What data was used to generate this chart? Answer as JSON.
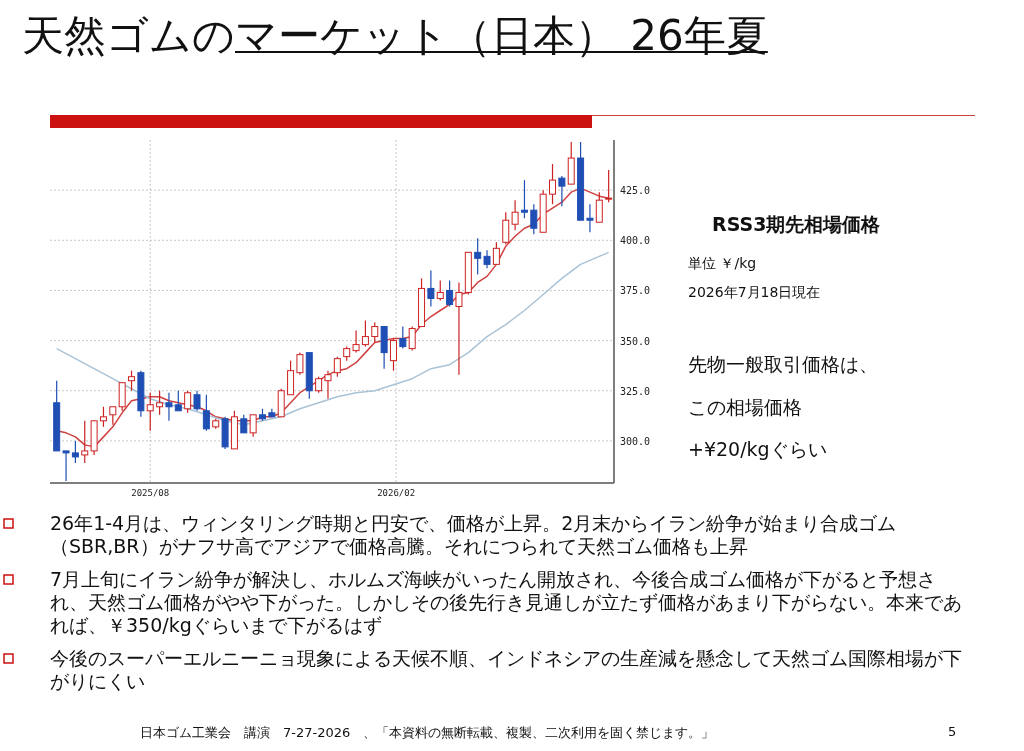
{
  "chart_data": {
    "type": "candlestick",
    "title": "天然ゴムのマーケット（日本） 26年夏",
    "annotations": [
      "RSS3期先相場価格",
      "単位 ￥/kg",
      "2026年7月18日現在",
      "先物一般取引価格は、",
      "この相場価格",
      "+¥20/kgぐらい",
      "26年1-4月は、ウィンタリング時期と円安で、価格が上昇。2月末からイラン紛争が始まり合成ゴム（SBR,BR）がナフサ高でアジアで価格高騰。それにつられて天然ゴム価格も上昇",
      "7月上旬にイラン紛争が解決し、ホルムズ海峡がいったん開放され、今後合成ゴム価格が下がると予想され、天然ゴム価格がやや下がった。しかしその後先行き見通しが立たず価格があまり下がらない。本来であれば、￥350/kgぐらいまで下がるはず",
      "今後のスーパーエルニーニョ現象による天候不順、インドネシアの生産減を懸念して天然ゴム国際相場が下がりにくい",
      "日本ゴム工業会　講演　7-27-2026　、「本資料の無断転載、複製、二次利用を固く禁じます。」",
      "5"
    ],
    "x": [
      "2025-05-23",
      "2025-05-30",
      "2025-06-06",
      "2025-06-13",
      "2025-06-20",
      "2025-06-27",
      "2025-07-04",
      "2025-07-11",
      "2025-07-18",
      "2025-07-25",
      "2025-08-01",
      "2025-08-08",
      "2025-08-15",
      "2025-08-22",
      "2025-08-29",
      "2025-09-05",
      "2025-09-12",
      "2025-09-19",
      "2025-09-26",
      "2025-10-03",
      "2025-10-10",
      "2025-10-17",
      "2025-10-24",
      "2025-10-31",
      "2025-11-07",
      "2025-11-14",
      "2025-11-21",
      "2025-11-28",
      "2025-12-05",
      "2025-12-12",
      "2025-12-19",
      "2025-12-26",
      "2026-01-02",
      "2026-01-09",
      "2026-01-16",
      "2026-01-23",
      "2026-01-30",
      "2026-02-06",
      "2026-02-13",
      "2026-02-20",
      "2026-02-27",
      "2026-03-06",
      "2026-03-13",
      "2026-03-20",
      "2026-03-27",
      "2026-04-03",
      "2026-04-10",
      "2026-04-17",
      "2026-04-24",
      "2026-05-01",
      "2026-05-08",
      "2026-05-15",
      "2026-05-22",
      "2026-05-29",
      "2026-06-05",
      "2026-06-12",
      "2026-06-19",
      "2026-06-26",
      "2026-07-03",
      "2026-07-10"
    ],
    "ohlc": [
      [
        319,
        330,
        295,
        295
      ],
      [
        295,
        295,
        280,
        294
      ],
      [
        294,
        300,
        289,
        292
      ],
      [
        293,
        310,
        289,
        295
      ],
      [
        295,
        310,
        293,
        310
      ],
      [
        310,
        317,
        307,
        312
      ],
      [
        313,
        317,
        308,
        317
      ],
      [
        317,
        329,
        315,
        329
      ],
      [
        330,
        335,
        325,
        332
      ],
      [
        334,
        335,
        312,
        315
      ],
      [
        315,
        324,
        305,
        318
      ],
      [
        317,
        325,
        313,
        319
      ],
      [
        319,
        324,
        310,
        317
      ],
      [
        318,
        325,
        315,
        315
      ],
      [
        316,
        325,
        314,
        324
      ],
      [
        323,
        325,
        315,
        316
      ],
      [
        315,
        323,
        305,
        306
      ],
      [
        307,
        311,
        306,
        310
      ],
      [
        311,
        312,
        296,
        297
      ],
      [
        296,
        315,
        296,
        312
      ],
      [
        311,
        313,
        304,
        304
      ],
      [
        304,
        313,
        302,
        313
      ],
      [
        313,
        316,
        310,
        311
      ],
      [
        314,
        316,
        312,
        312
      ],
      [
        312,
        326,
        312,
        325
      ],
      [
        323,
        340,
        323,
        335
      ],
      [
        334,
        344,
        333,
        343
      ],
      [
        344,
        344,
        321,
        325
      ],
      [
        325,
        332,
        324,
        331
      ],
      [
        330,
        335,
        321,
        333
      ],
      [
        334,
        342,
        332,
        341
      ],
      [
        342,
        347,
        340,
        346
      ],
      [
        345,
        355,
        344,
        348
      ],
      [
        348,
        360,
        347,
        352
      ],
      [
        352,
        359,
        349,
        357
      ],
      [
        357,
        357,
        336,
        344
      ],
      [
        340,
        351,
        335,
        350
      ],
      [
        351,
        357,
        346,
        347
      ],
      [
        346,
        357,
        345,
        356
      ],
      [
        357,
        381,
        357,
        376
      ],
      [
        376,
        385,
        367,
        371
      ],
      [
        371,
        380,
        370,
        374
      ],
      [
        375,
        380,
        367,
        368
      ],
      [
        367,
        379,
        333,
        374
      ],
      [
        374,
        394,
        373,
        394
      ],
      [
        394,
        401,
        383,
        391
      ],
      [
        392,
        395,
        386,
        388
      ],
      [
        388,
        399,
        388,
        396
      ],
      [
        399,
        414,
        398,
        410
      ],
      [
        408,
        420,
        405,
        414
      ],
      [
        415,
        430,
        411,
        414
      ],
      [
        415,
        418,
        403,
        406
      ],
      [
        404,
        425,
        404,
        423
      ],
      [
        423,
        438,
        418,
        430
      ],
      [
        431,
        432,
        417,
        427
      ],
      [
        428,
        449,
        428,
        441
      ],
      [
        441,
        449,
        410,
        410
      ],
      [
        411,
        418,
        404,
        410
      ],
      [
        409,
        424,
        409,
        420
      ],
      [
        421,
        435,
        419,
        421
      ]
    ],
    "colors": [
      "#1f4fb4",
      "#1f4fb4",
      "#1f4fb4",
      "#cc2222",
      "#cc2222",
      "#cc2222",
      "#cc2222",
      "#cc2222",
      "#cc2222",
      "#1f4fb4",
      "#cc2222",
      "#cc2222",
      "#1f4fb4",
      "#1f4fb4",
      "#cc2222",
      "#1f4fb4",
      "#1f4fb4",
      "#cc2222",
      "#1f4fb4",
      "#cc2222",
      "#1f4fb4",
      "#cc2222",
      "#1f4fb4",
      "#1f4fb4",
      "#cc2222",
      "#cc2222",
      "#cc2222",
      "#1f4fb4",
      "#cc2222",
      "#cc2222",
      "#cc2222",
      "#cc2222",
      "#cc2222",
      "#cc2222",
      "#cc2222",
      "#1f4fb4",
      "#cc2222",
      "#1f4fb4",
      "#cc2222",
      "#cc2222",
      "#1f4fb4",
      "#cc2222",
      "#1f4fb4",
      "#cc2222",
      "#cc2222",
      "#1f4fb4",
      "#1f4fb4",
      "#cc2222",
      "#cc2222",
      "#cc2222",
      "#1f4fb4",
      "#1f4fb4",
      "#cc2222",
      "#cc2222",
      "#1f4fb4",
      "#cc2222",
      "#1f4fb4",
      "#1f4fb4",
      "#cc2222",
      "#cc2222"
    ],
    "series": [
      {
        "type": "line",
        "color": "#d04040",
        "x": [
          "2025-05-23",
          "2025-05-30",
          "2025-06-06",
          "2025-06-13",
          "2025-06-20",
          "2025-06-27",
          "2025-07-04",
          "2025-07-11",
          "2025-07-18",
          "2025-07-25",
          "2025-08-01",
          "2025-08-08",
          "2025-08-15",
          "2025-08-22",
          "2025-08-29",
          "2025-09-05",
          "2025-09-12",
          "2025-09-19",
          "2025-10-03",
          "2025-10-10",
          "2025-10-17",
          "2025-10-24",
          "2025-10-31",
          "2025-11-07",
          "2025-11-14",
          "2025-11-21",
          "2025-11-28",
          "2025-12-05",
          "2025-12-12",
          "2025-12-19",
          "2025-12-26",
          "2026-01-02",
          "2026-01-09",
          "2026-01-16",
          "2026-01-23",
          "2026-01-30",
          "2026-02-06",
          "2026-02-13",
          "2026-02-20",
          "2026-02-27",
          "2026-03-06",
          "2026-03-13",
          "2026-03-20",
          "2026-03-27",
          "2026-04-03",
          "2026-04-10",
          "2026-04-17",
          "2026-04-24",
          "2026-05-01",
          "2026-05-08",
          "2026-05-15",
          "2026-05-22",
          "2026-05-29",
          "2026-06-05",
          "2026-06-12",
          "2026-06-19",
          "2026-06-26",
          "2026-07-03",
          "2026-07-10"
        ],
        "values": [
          305,
          304,
          302,
          298,
          297,
          302,
          307,
          314,
          320,
          321,
          322,
          322,
          320,
          319,
          318,
          317,
          315,
          312,
          310,
          310,
          310,
          312,
          312,
          314,
          319,
          324,
          327,
          330,
          333,
          335,
          336,
          339,
          344,
          349,
          350,
          351,
          351,
          352,
          358,
          362,
          365,
          368,
          373,
          374,
          379,
          382,
          388,
          397,
          402,
          406,
          408,
          413,
          416,
          419,
          424,
          426,
          424,
          422,
          421
        ]
      },
      {
        "type": "line",
        "color": "#a9c3d6",
        "x": [
          "2025-05-23",
          "2025-06-06",
          "2025-06-20",
          "2025-07-04",
          "2025-07-18",
          "2025-08-01",
          "2025-08-15",
          "2025-08-29",
          "2025-09-12",
          "2025-09-26",
          "2025-10-10",
          "2025-10-24",
          "2025-11-07",
          "2025-11-21",
          "2025-12-05",
          "2025-12-19",
          "2026-01-02",
          "2026-01-16",
          "2026-01-30",
          "2026-02-13",
          "2026-02-27",
          "2026-03-13",
          "2026-03-27",
          "2026-04-10",
          "2026-04-24",
          "2026-05-08",
          "2026-05-22",
          "2026-06-05",
          "2026-06-19",
          "2026-07-03",
          "2026-07-10"
        ],
        "values": [
          346,
          341,
          336,
          331,
          326,
          321,
          318,
          316,
          313,
          310,
          308,
          310,
          312,
          316,
          319,
          322,
          324,
          325,
          328,
          331,
          336,
          338,
          344,
          352,
          358,
          365,
          373,
          381,
          388,
          392,
          394
        ]
      }
    ],
    "xlim": [
      "2025-05-18",
      "2026-07-14"
    ],
    "xticks": [
      {
        "value": "2025-08-01",
        "label": "2025/08"
      },
      {
        "value": "2026-02-01",
        "label": "2026/02"
      }
    ],
    "ylim": [
      279,
      450
    ],
    "yticks": [
      {
        "value": 300,
        "label": "300.0"
      },
      {
        "value": 325,
        "label": "325.0"
      },
      {
        "value": 350,
        "label": "350.0"
      },
      {
        "value": 375,
        "label": "375.0"
      },
      {
        "value": 400,
        "label": "400.0"
      },
      {
        "value": 425,
        "label": "425.0"
      }
    ],
    "grid": true
  }
}
